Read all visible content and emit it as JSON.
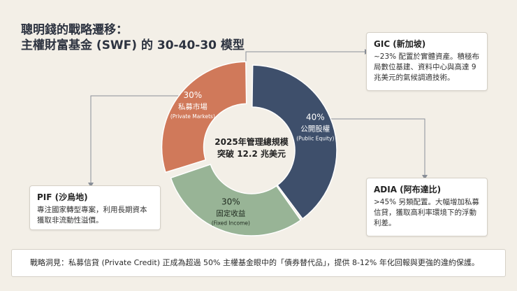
{
  "title": {
    "line1": "聰明錢的戰略遷移：",
    "line2": "主權財富基金 (SWF) 的 30-40-30 模型"
  },
  "chart_data": {
    "type": "pie",
    "slices": [
      {
        "pct_label": "40%",
        "label": "公開股權",
        "sublabel": "(Public Equity)",
        "value": 40,
        "color": "#3e4f6b"
      },
      {
        "pct_label": "30%",
        "label": "固定收益",
        "sublabel": "(Fixed Income)",
        "value": 30,
        "color": "#98b496"
      },
      {
        "pct_label": "30%",
        "label": "私募市場",
        "sublabel": "(Private Markets)",
        "value": 30,
        "color": "#d0795a"
      }
    ],
    "center_text": [
      "2025年管理總規模",
      "突破 12.2 兆美元"
    ]
  },
  "cards": {
    "gic": {
      "title": "GIC (新加坡)",
      "body": "~23% 配置於實體資產。積極布局數位基建、資料中心與高達 9 兆美元的氣候調適技術。"
    },
    "adia": {
      "title": "ADIA (阿布達比)",
      "body": ">45% 另類配置。大幅增加私募信貸，獲取高利率環境下的浮動利差。"
    },
    "pif": {
      "title": "PIF (沙烏地)",
      "body": "專注國家轉型專案，利用長期資本獲取非流動性溢價。"
    }
  },
  "footer": {
    "text": "戰略洞見：私募信貸 (Private Credit) 正成為超過 50% 主權基金眼中的「債券替代品」，提供 8-12% 年化回報與更強的違約保護。"
  }
}
